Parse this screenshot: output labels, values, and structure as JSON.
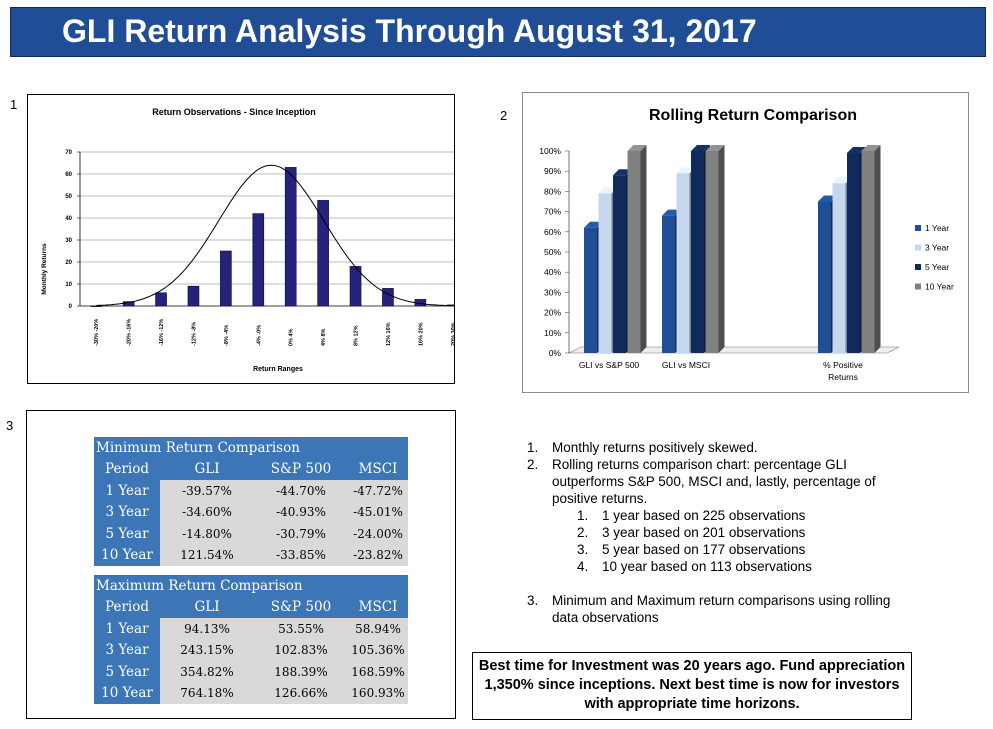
{
  "slide": {
    "title": "GLI Return Analysis Through August 31, 2017",
    "section_numbers": [
      "1",
      "2",
      "3"
    ]
  },
  "chart_data": [
    {
      "type": "bar",
      "title": "Return Observations - Since Inception",
      "xlabel": "Return Ranges",
      "ylabel": "Monthly Returns",
      "categories": [
        "-30% -20%",
        "-20% -16%",
        "-16% -12%",
        "-12% -8%",
        "-8% -4%",
        "-4% -0%",
        "0% 4%",
        "4% 8%",
        "8% 12%",
        "12% 16%",
        "16% 20%",
        "20% 30%"
      ],
      "values": [
        0,
        2,
        6,
        9,
        25,
        42,
        63,
        48,
        18,
        8,
        3,
        0.5
      ],
      "ylim": [
        0,
        70
      ],
      "yticks": [
        0,
        10,
        20,
        30,
        40,
        50,
        60,
        70
      ],
      "grid": true,
      "overlay": "normal distribution curve"
    },
    {
      "type": "bar",
      "title": "Rolling Return Comparison",
      "categories": [
        "GLI vs S&P 500",
        "GLI vs MSCI",
        "",
        "% Positive Returns"
      ],
      "series": [
        {
          "name": "1 Year",
          "values": [
            62,
            68,
            null,
            75
          ],
          "color": "#1f4e96"
        },
        {
          "name": "3 Year",
          "values": [
            79,
            89,
            null,
            84
          ],
          "color": "#c6d6ef"
        },
        {
          "name": "5 Year",
          "values": [
            88,
            100,
            null,
            99
          ],
          "color": "#102a5c"
        },
        {
          "name": "10 Year",
          "values": [
            100,
            100,
            null,
            100
          ],
          "color": "#808080"
        }
      ],
      "ylim": [
        0,
        100
      ],
      "yticks": [
        "0%",
        "10%",
        "20%",
        "30%",
        "40%",
        "50%",
        "60%",
        "70%",
        "80%",
        "90%",
        "100%"
      ],
      "legend": "right",
      "style": "3d"
    }
  ],
  "min_table": {
    "title": "Minimum Return Comparison",
    "columns": [
      "Period",
      "GLI",
      "S&P 500",
      "MSCI"
    ],
    "rows": [
      [
        "1 Year",
        "-39.57%",
        "-44.70%",
        "-47.72%"
      ],
      [
        "3 Year",
        "-34.60%",
        "-40.93%",
        "-45.01%"
      ],
      [
        "5 Year",
        "-14.80%",
        "-30.79%",
        "-24.00%"
      ],
      [
        "10 Year",
        "121.54%",
        "-33.85%",
        "-23.82%"
      ]
    ]
  },
  "max_table": {
    "title": "Maximum Return Comparison",
    "columns": [
      "Period",
      "GLI",
      "S&P 500",
      "MSCI"
    ],
    "rows": [
      [
        "1 Year",
        "94.13%",
        "53.55%",
        "58.94%"
      ],
      [
        "3 Year",
        "243.15%",
        "102.83%",
        "105.36%"
      ],
      [
        "5 Year",
        "354.82%",
        "188.39%",
        "168.59%"
      ],
      [
        "10 Year",
        "764.18%",
        "126.66%",
        "160.93%"
      ]
    ]
  },
  "notes": {
    "items": [
      {
        "n": "1.",
        "text": "Monthly returns positively skewed."
      },
      {
        "n": "2.",
        "text": "Rolling returns comparison chart:  percentage GLI outperforms S&P 500, MSCI and, lastly, percentage of positive returns."
      }
    ],
    "subitems": [
      {
        "n": "1.",
        "text": "1 year based on 225 observations"
      },
      {
        "n": "2.",
        "text": "3 year based on 201 observations"
      },
      {
        "n": "3.",
        "text": "5 year based on 177 observations"
      },
      {
        "n": "4.",
        "text": "10 year based on 113 observations"
      }
    ],
    "item3": {
      "n": "3.",
      "text": "Minimum and Maximum return comparisons using rolling data observations"
    }
  },
  "callout": {
    "text": "Best time for Investment was 20 years ago.  Fund appreciation 1,350% since inceptions.  Next best time is now for investors with appropriate time horizons."
  }
}
